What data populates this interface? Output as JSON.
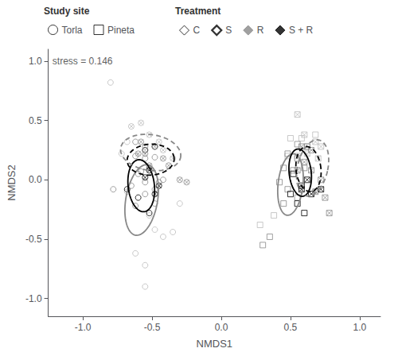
{
  "chart_data": {
    "type": "scatter",
    "xlabel": "NMDS1",
    "ylabel": "NMDS2",
    "xlim": [
      -1.25,
      1.15
    ],
    "ylim": [
      -1.15,
      1.1
    ],
    "xticks": [
      {
        "value": -1.0,
        "label": "-1.0"
      },
      -0.5,
      {
        "value": 0.0,
        "label": "0.0"
      },
      0.5,
      {
        "value": 1.0,
        "label": "1.0"
      }
    ],
    "yticks": [
      {
        "value": -1.0,
        "label": "-1.0"
      },
      -0.5,
      {
        "value": 0.0,
        "label": "0.0"
      },
      0.5,
      {
        "value": 1.0,
        "label": "1.0"
      }
    ],
    "grid": false,
    "legend": "top",
    "annotations": [
      {
        "text": "stress = 0.146",
        "x": -1.22,
        "y": 1.04
      }
    ],
    "legend_groups": [
      {
        "title": "Study site",
        "entries": [
          {
            "name": "Torla",
            "marker": "circle",
            "color": "#000000"
          },
          {
            "name": "Pineta",
            "marker": "square",
            "color": "#000000"
          }
        ]
      },
      {
        "title": "Treatment",
        "entries": [
          {
            "name": "C",
            "marker": "diamond_open",
            "color": "#000000"
          },
          {
            "name": "S",
            "marker": "diamond_open_bold",
            "color": "#000000"
          },
          {
            "name": "R",
            "marker": "diamond",
            "color": "#888888"
          },
          {
            "name": "S + R",
            "marker": "diamond",
            "color": "#000000"
          }
        ]
      }
    ],
    "series": [
      {
        "color": "#bbbbbb",
        "marker": "circle",
        "values": [
          [
            -0.8,
            0.82
          ],
          [
            -0.68,
            0.32
          ],
          [
            -0.72,
            0.22
          ],
          [
            -0.62,
            -0.62
          ],
          [
            -0.55,
            -0.72
          ],
          [
            -0.55,
            -0.9
          ],
          [
            -0.68,
            -0.1
          ],
          [
            -0.42,
            -0.48
          ],
          [
            -0.35,
            -0.44
          ],
          [
            -0.3,
            -0.2
          ],
          [
            -0.48,
            -0.42
          ],
          [
            -0.52,
            -0.3
          ]
        ]
      },
      {
        "color": "#888888",
        "marker": "circle",
        "values": [
          [
            -0.55,
            0.28
          ],
          [
            -0.48,
            0.19
          ],
          [
            -0.62,
            0.32
          ],
          [
            -0.58,
            0.07
          ],
          [
            -0.65,
            -0.05
          ],
          [
            -0.55,
            -0.12
          ],
          [
            -0.62,
            -0.22
          ],
          [
            -0.78,
            -0.08
          ],
          [
            -0.42,
            0.0
          ],
          [
            -0.45,
            -0.02
          ],
          [
            -0.48,
            -0.2
          ]
        ]
      },
      {
        "color": "#888888",
        "marker": "circle",
        "values": [
          [
            -0.62,
            0.2
          ],
          [
            -0.55,
            0.18
          ],
          [
            -0.52,
            0.1
          ],
          [
            -0.6,
            0.05
          ],
          [
            -0.55,
            -0.02
          ],
          [
            -0.48,
            -0.08
          ]
        ]
      },
      {
        "color": "#000000",
        "marker": "circle",
        "values": [
          [
            -0.68,
            -0.08
          ],
          [
            -0.6,
            -0.15
          ],
          [
            -0.52,
            -0.28
          ],
          [
            -0.48,
            0.28
          ],
          [
            -0.55,
            0.25
          ]
        ]
      },
      {
        "color": "#bbbbbb",
        "marker": "circle_x",
        "values": [
          [
            -0.65,
            0.45
          ],
          [
            -0.58,
            0.48
          ],
          [
            -0.52,
            0.38
          ],
          [
            -0.45,
            0.32
          ],
          [
            -0.42,
            0.25
          ],
          [
            -0.35,
            0.18
          ]
        ]
      },
      {
        "color": "#888888",
        "marker": "circle_x",
        "values": [
          [
            -0.6,
            0.22
          ],
          [
            -0.52,
            0.12
          ],
          [
            -0.38,
            0.12
          ],
          [
            -0.3,
            0.0
          ],
          [
            -0.25,
            -0.02
          ]
        ]
      },
      {
        "color": "#888888",
        "marker": "circle_x",
        "values": [
          [
            -0.58,
            0.32
          ],
          [
            -0.55,
            0.22
          ],
          [
            -0.48,
            0.28
          ],
          [
            -0.42,
            0.18
          ]
        ]
      },
      {
        "color": "#000000",
        "marker": "circle_x",
        "values": [
          [
            -0.52,
            0.08
          ],
          [
            -0.45,
            -0.05
          ],
          [
            -0.55,
            0.02
          ],
          [
            -0.48,
            -0.12
          ]
        ]
      },
      {
        "color": "#bbbbbb",
        "marker": "square",
        "values": [
          [
            0.5,
            0.35
          ],
          [
            0.58,
            0.35
          ],
          [
            0.48,
            0.2
          ],
          [
            0.55,
            0.2
          ],
          [
            0.62,
            0.28
          ],
          [
            0.68,
            0.38
          ],
          [
            0.38,
            -0.3
          ],
          [
            0.28,
            -0.38
          ]
        ]
      },
      {
        "color": "#888888",
        "marker": "square",
        "values": [
          [
            0.45,
            0.1
          ],
          [
            0.52,
            0.08
          ],
          [
            0.42,
            -0.02
          ],
          [
            0.48,
            -0.08
          ],
          [
            0.55,
            -0.15
          ],
          [
            0.45,
            -0.2
          ],
          [
            0.35,
            -0.48
          ],
          [
            0.3,
            -0.55
          ]
        ]
      },
      {
        "color": "#888888",
        "marker": "square",
        "values": [
          [
            0.55,
            0.3
          ],
          [
            0.62,
            0.28
          ],
          [
            0.55,
            0.18
          ],
          [
            0.6,
            0.1
          ],
          [
            0.48,
            0.22
          ]
        ]
      },
      {
        "color": "#000000",
        "marker": "square",
        "values": [
          [
            0.52,
            0.05
          ],
          [
            0.58,
            -0.05
          ],
          [
            0.5,
            -0.12
          ],
          [
            0.55,
            -0.2
          ],
          [
            0.6,
            -0.28
          ]
        ]
      },
      {
        "color": "#bbbbbb",
        "marker": "square_x",
        "values": [
          [
            0.6,
            0.38
          ],
          [
            0.68,
            0.32
          ],
          [
            0.72,
            0.28
          ],
          [
            0.55,
            0.55
          ],
          [
            0.62,
            0.22
          ],
          [
            0.7,
            0.18
          ]
        ]
      },
      {
        "color": "#888888",
        "marker": "square_x",
        "values": [
          [
            0.65,
            0.08
          ],
          [
            0.72,
            0.0
          ],
          [
            0.68,
            -0.1
          ],
          [
            0.75,
            -0.15
          ],
          [
            0.78,
            -0.28
          ]
        ]
      },
      {
        "color": "#888888",
        "marker": "square_x",
        "values": [
          [
            0.58,
            0.28
          ],
          [
            0.65,
            0.25
          ],
          [
            0.6,
            0.15
          ],
          [
            0.55,
            0.08
          ]
        ]
      },
      {
        "color": "#000000",
        "marker": "square_x",
        "values": [
          [
            0.62,
            0.0
          ],
          [
            0.58,
            -0.08
          ],
          [
            0.65,
            -0.12
          ],
          [
            0.72,
            -0.08
          ]
        ]
      }
    ],
    "ellipses": [
      {
        "cx": -0.575,
        "cy": -0.17,
        "rx": 0.115,
        "ry": 0.3,
        "angle": -8,
        "color": "#888888",
        "line_style": "solid"
      },
      {
        "cx": -0.578,
        "cy": -0.05,
        "rx": 0.095,
        "ry": 0.22,
        "angle": 5,
        "color": "#000000",
        "line_style": "solid"
      },
      {
        "cx": -0.51,
        "cy": 0.23,
        "rx": 0.22,
        "ry": 0.15,
        "angle": -12,
        "color": "#888888",
        "line_style": "dashed"
      },
      {
        "cx": -0.51,
        "cy": 0.17,
        "rx": 0.17,
        "ry": 0.13,
        "angle": 5,
        "color": "#000000",
        "line_style": "dashed"
      },
      {
        "cx": 0.5,
        "cy": -0.04,
        "rx": 0.09,
        "ry": 0.26,
        "angle": -5,
        "color": "#888888",
        "line_style": "solid"
      },
      {
        "cx": 0.57,
        "cy": 0.06,
        "rx": 0.08,
        "ry": 0.2,
        "angle": 5,
        "color": "#000000",
        "line_style": "solid"
      },
      {
        "cx": 0.66,
        "cy": 0.1,
        "rx": 0.11,
        "ry": 0.24,
        "angle": -10,
        "color": "#888888",
        "line_style": "dashed"
      },
      {
        "cx": 0.63,
        "cy": 0.09,
        "rx": 0.09,
        "ry": 0.19,
        "angle": 5,
        "color": "#000000",
        "line_style": "dashed"
      }
    ]
  }
}
